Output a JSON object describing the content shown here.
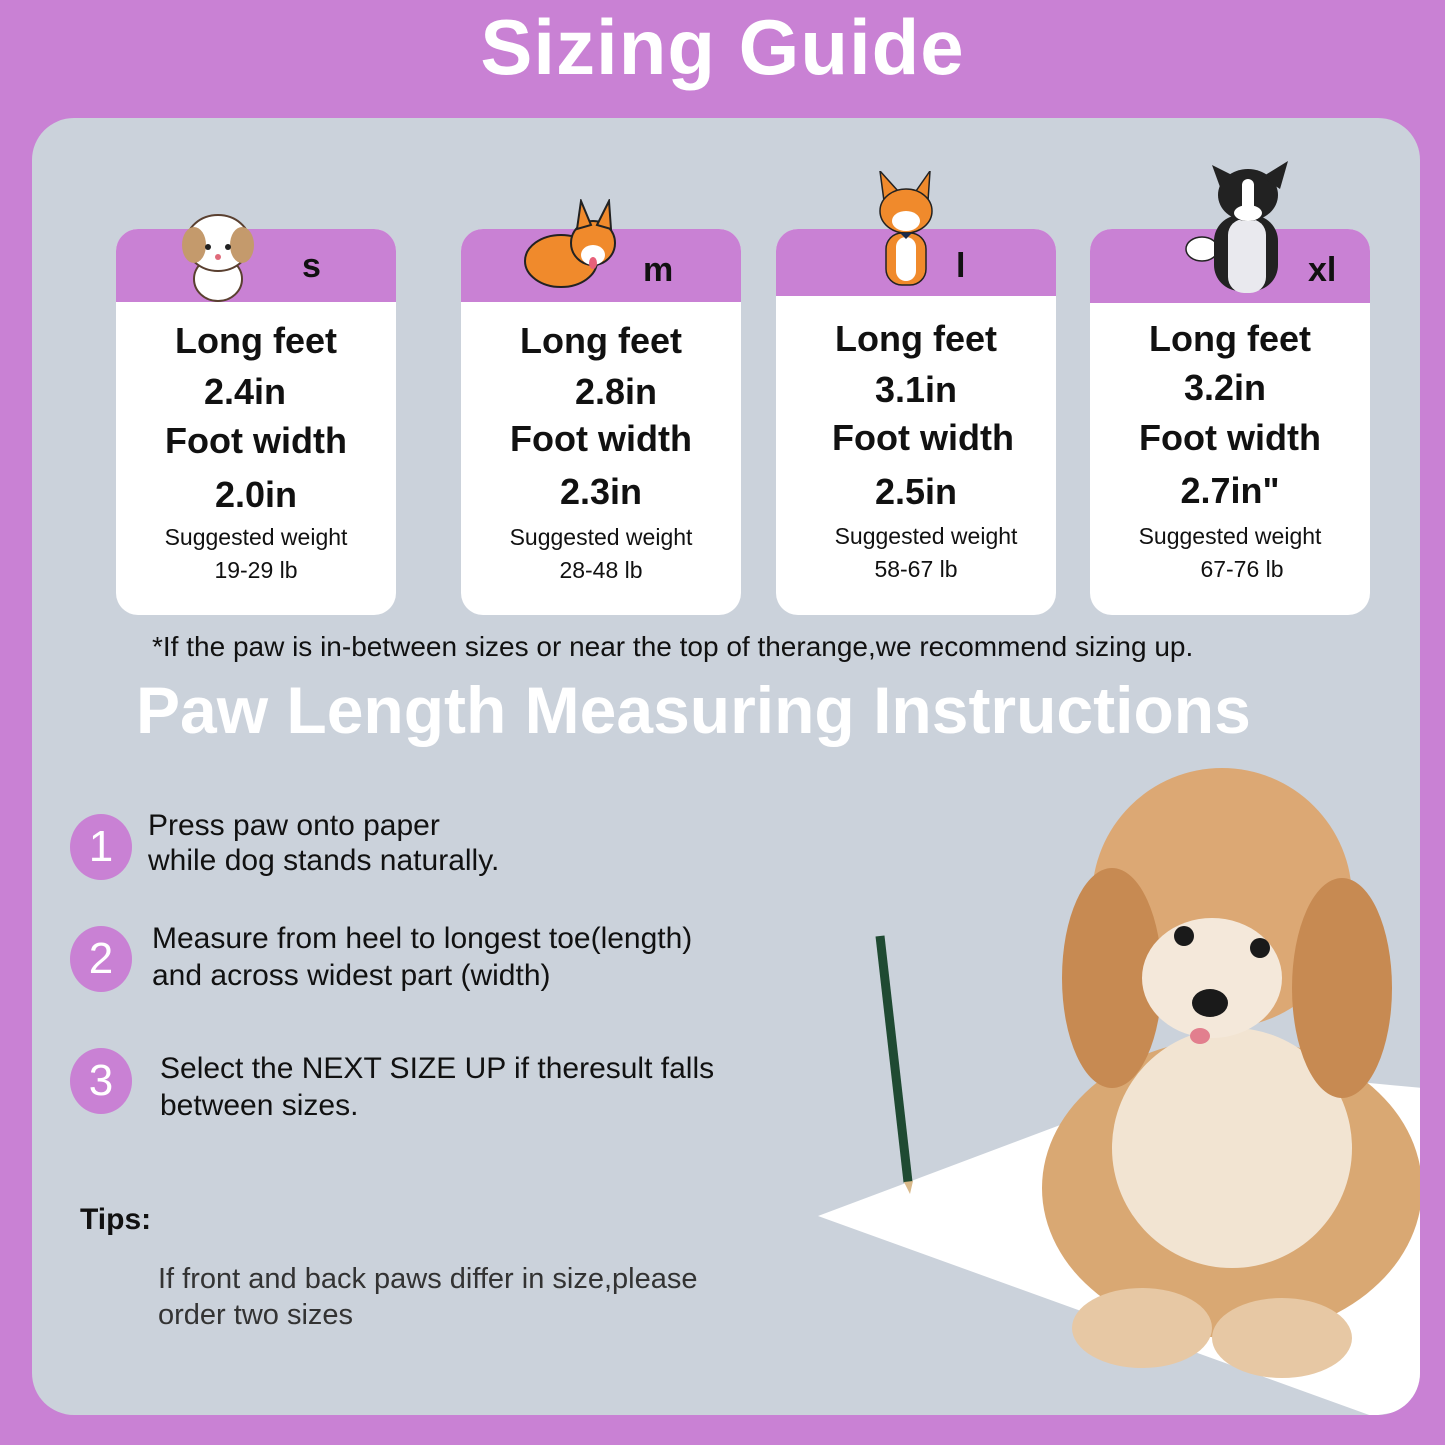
{
  "title": "Sizing Guide",
  "colors": {
    "accent": "#c981d4",
    "panel": "#cbd2db",
    "card": "#ffffff"
  },
  "sizes": [
    {
      "label": "s",
      "illustration": "shih-tzu-puppy",
      "length_label": "Long feet",
      "length": "2.4in",
      "width_label": "Foot width",
      "width": "2.0in",
      "weight_label": "Suggested weight",
      "weight": "19-29 lb"
    },
    {
      "label": "m",
      "illustration": "corgi",
      "length_label": "Long feet",
      "length": "2.8in",
      "width_label": "Foot width",
      "width": "2.3in",
      "weight_label": "Suggested weight",
      "weight": "28-48 lb"
    },
    {
      "label": "l",
      "illustration": "shiba-inu",
      "length_label": "Long feet",
      "length": "3.1in",
      "width_label": "Foot width",
      "width": "2.5in",
      "weight_label": "Suggested weight",
      "weight": "58-67 lb"
    },
    {
      "label": "xl",
      "illustration": "border-collie",
      "length_label": "Long feet",
      "length": "3.2in",
      "width_label": "Foot width",
      "width": "2.7in\"",
      "weight_label": "Suggested weight",
      "weight": "67-76 lb"
    }
  ],
  "note": "*If the paw is in-between sizes or near the top of therange,we recommend sizing up.",
  "instructions_title": "Paw Length Measuring Instructions",
  "steps": [
    {
      "number": "1",
      "lines": [
        "Press paw onto paper",
        "while dog stands naturally."
      ]
    },
    {
      "number": "2",
      "lines": [
        "Measure from heel to longest toe(length)",
        "and across widest part (width)"
      ]
    },
    {
      "number": "3",
      "lines": [
        "Select the NEXT SIZE UP if theresult falls",
        "between sizes."
      ]
    }
  ],
  "tips": {
    "label": "Tips:",
    "lines": [
      "If front and back paws differ in size,please",
      "order two sizes"
    ]
  }
}
